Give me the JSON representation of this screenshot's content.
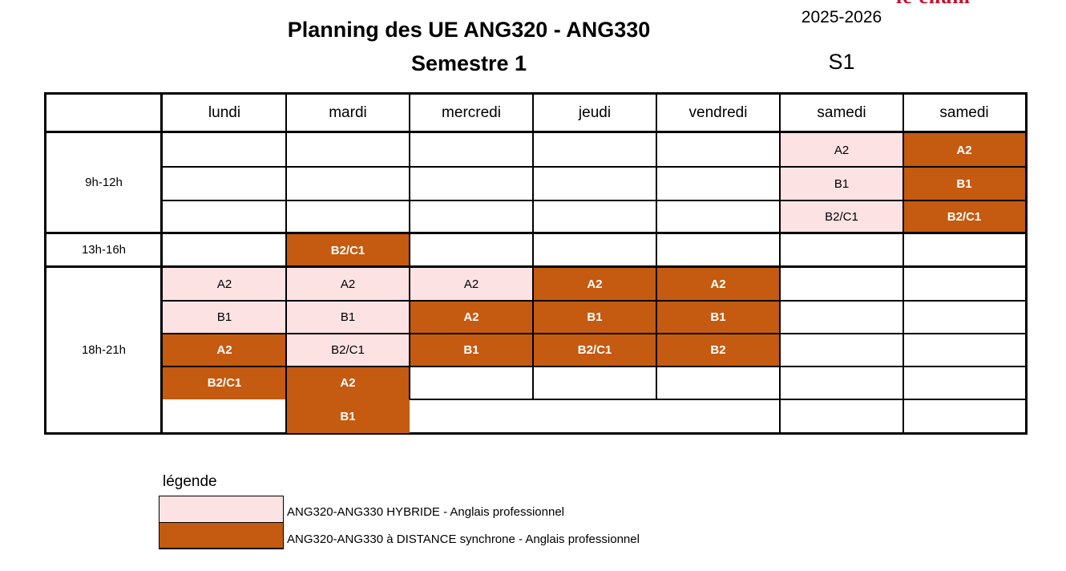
{
  "header": {
    "title_line1": "Planning des UE ANG320 - ANG330",
    "title_line2": "Semestre 1",
    "year": "2025-2026",
    "semester_code": "S1",
    "brand_color": "#c8102e"
  },
  "colors": {
    "hybride": "#fde2e4",
    "distance": "#c55a11"
  },
  "days": [
    "lundi",
    "mardi",
    "mercredi",
    "jeudi",
    "vendredi",
    "samedi",
    "samedi"
  ],
  "time_slots": [
    "9h-12h",
    "13h-16h",
    "18h-21h"
  ],
  "sessions": {
    "slot_9h_12h": {
      "samedi_1": [
        "A2",
        "B1",
        "B2/C1"
      ],
      "samedi_2": [
        "A2",
        "B1",
        "B2/C1"
      ]
    },
    "slot_13h_16h": {
      "mardi": [
        "B2/C1"
      ]
    },
    "slot_18h_21h": {
      "lundi": [
        "A2",
        "B1",
        "A2",
        "B2/C1"
      ],
      "mardi": [
        "A2",
        "B1",
        "B2/C1",
        "A2",
        "B1"
      ],
      "mercredi": [
        "A2",
        "A2",
        "B1"
      ],
      "jeudi": [
        "A2",
        "B1",
        "B2/C1"
      ],
      "vendredi": [
        "A2",
        "B1",
        "B2"
      ]
    }
  },
  "legend": {
    "title": "légende",
    "hybride": "ANG320-ANG330 HYBRIDE - Anglais professionnel",
    "distance": "ANG320-ANG330 à DISTANCE synchrone - Anglais professionnel"
  }
}
